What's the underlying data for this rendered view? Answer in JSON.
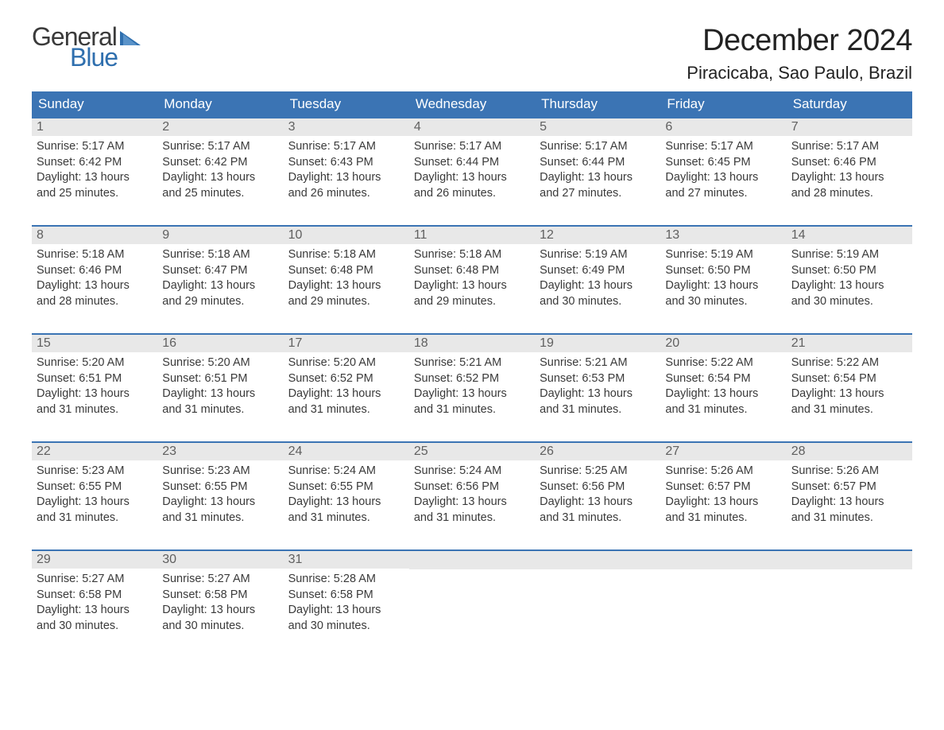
{
  "logo": {
    "text_top": "General",
    "text_bottom": "Blue",
    "color_top": "#3a3a3a",
    "color_bottom": "#2f6fae",
    "icon_color": "#2f6fae"
  },
  "title": "December 2024",
  "location": "Piracicaba, Sao Paulo, Brazil",
  "colors": {
    "header_bg": "#3b74b4",
    "header_text": "#ffffff",
    "daynum_bg": "#e8e8e8",
    "daynum_text": "#606060",
    "body_text": "#3a3a3a",
    "week_border": "#3b74b4",
    "page_bg": "#ffffff"
  },
  "weekdays": [
    "Sunday",
    "Monday",
    "Tuesday",
    "Wednesday",
    "Thursday",
    "Friday",
    "Saturday"
  ],
  "weeks": [
    [
      {
        "num": "1",
        "sunrise": "Sunrise: 5:17 AM",
        "sunset": "Sunset: 6:42 PM",
        "day1": "Daylight: 13 hours",
        "day2": "and 25 minutes."
      },
      {
        "num": "2",
        "sunrise": "Sunrise: 5:17 AM",
        "sunset": "Sunset: 6:42 PM",
        "day1": "Daylight: 13 hours",
        "day2": "and 25 minutes."
      },
      {
        "num": "3",
        "sunrise": "Sunrise: 5:17 AM",
        "sunset": "Sunset: 6:43 PM",
        "day1": "Daylight: 13 hours",
        "day2": "and 26 minutes."
      },
      {
        "num": "4",
        "sunrise": "Sunrise: 5:17 AM",
        "sunset": "Sunset: 6:44 PM",
        "day1": "Daylight: 13 hours",
        "day2": "and 26 minutes."
      },
      {
        "num": "5",
        "sunrise": "Sunrise: 5:17 AM",
        "sunset": "Sunset: 6:44 PM",
        "day1": "Daylight: 13 hours",
        "day2": "and 27 minutes."
      },
      {
        "num": "6",
        "sunrise": "Sunrise: 5:17 AM",
        "sunset": "Sunset: 6:45 PM",
        "day1": "Daylight: 13 hours",
        "day2": "and 27 minutes."
      },
      {
        "num": "7",
        "sunrise": "Sunrise: 5:17 AM",
        "sunset": "Sunset: 6:46 PM",
        "day1": "Daylight: 13 hours",
        "day2": "and 28 minutes."
      }
    ],
    [
      {
        "num": "8",
        "sunrise": "Sunrise: 5:18 AM",
        "sunset": "Sunset: 6:46 PM",
        "day1": "Daylight: 13 hours",
        "day2": "and 28 minutes."
      },
      {
        "num": "9",
        "sunrise": "Sunrise: 5:18 AM",
        "sunset": "Sunset: 6:47 PM",
        "day1": "Daylight: 13 hours",
        "day2": "and 29 minutes."
      },
      {
        "num": "10",
        "sunrise": "Sunrise: 5:18 AM",
        "sunset": "Sunset: 6:48 PM",
        "day1": "Daylight: 13 hours",
        "day2": "and 29 minutes."
      },
      {
        "num": "11",
        "sunrise": "Sunrise: 5:18 AM",
        "sunset": "Sunset: 6:48 PM",
        "day1": "Daylight: 13 hours",
        "day2": "and 29 minutes."
      },
      {
        "num": "12",
        "sunrise": "Sunrise: 5:19 AM",
        "sunset": "Sunset: 6:49 PM",
        "day1": "Daylight: 13 hours",
        "day2": "and 30 minutes."
      },
      {
        "num": "13",
        "sunrise": "Sunrise: 5:19 AM",
        "sunset": "Sunset: 6:50 PM",
        "day1": "Daylight: 13 hours",
        "day2": "and 30 minutes."
      },
      {
        "num": "14",
        "sunrise": "Sunrise: 5:19 AM",
        "sunset": "Sunset: 6:50 PM",
        "day1": "Daylight: 13 hours",
        "day2": "and 30 minutes."
      }
    ],
    [
      {
        "num": "15",
        "sunrise": "Sunrise: 5:20 AM",
        "sunset": "Sunset: 6:51 PM",
        "day1": "Daylight: 13 hours",
        "day2": "and 31 minutes."
      },
      {
        "num": "16",
        "sunrise": "Sunrise: 5:20 AM",
        "sunset": "Sunset: 6:51 PM",
        "day1": "Daylight: 13 hours",
        "day2": "and 31 minutes."
      },
      {
        "num": "17",
        "sunrise": "Sunrise: 5:20 AM",
        "sunset": "Sunset: 6:52 PM",
        "day1": "Daylight: 13 hours",
        "day2": "and 31 minutes."
      },
      {
        "num": "18",
        "sunrise": "Sunrise: 5:21 AM",
        "sunset": "Sunset: 6:52 PM",
        "day1": "Daylight: 13 hours",
        "day2": "and 31 minutes."
      },
      {
        "num": "19",
        "sunrise": "Sunrise: 5:21 AM",
        "sunset": "Sunset: 6:53 PM",
        "day1": "Daylight: 13 hours",
        "day2": "and 31 minutes."
      },
      {
        "num": "20",
        "sunrise": "Sunrise: 5:22 AM",
        "sunset": "Sunset: 6:54 PM",
        "day1": "Daylight: 13 hours",
        "day2": "and 31 minutes."
      },
      {
        "num": "21",
        "sunrise": "Sunrise: 5:22 AM",
        "sunset": "Sunset: 6:54 PM",
        "day1": "Daylight: 13 hours",
        "day2": "and 31 minutes."
      }
    ],
    [
      {
        "num": "22",
        "sunrise": "Sunrise: 5:23 AM",
        "sunset": "Sunset: 6:55 PM",
        "day1": "Daylight: 13 hours",
        "day2": "and 31 minutes."
      },
      {
        "num": "23",
        "sunrise": "Sunrise: 5:23 AM",
        "sunset": "Sunset: 6:55 PM",
        "day1": "Daylight: 13 hours",
        "day2": "and 31 minutes."
      },
      {
        "num": "24",
        "sunrise": "Sunrise: 5:24 AM",
        "sunset": "Sunset: 6:55 PM",
        "day1": "Daylight: 13 hours",
        "day2": "and 31 minutes."
      },
      {
        "num": "25",
        "sunrise": "Sunrise: 5:24 AM",
        "sunset": "Sunset: 6:56 PM",
        "day1": "Daylight: 13 hours",
        "day2": "and 31 minutes."
      },
      {
        "num": "26",
        "sunrise": "Sunrise: 5:25 AM",
        "sunset": "Sunset: 6:56 PM",
        "day1": "Daylight: 13 hours",
        "day2": "and 31 minutes."
      },
      {
        "num": "27",
        "sunrise": "Sunrise: 5:26 AM",
        "sunset": "Sunset: 6:57 PM",
        "day1": "Daylight: 13 hours",
        "day2": "and 31 minutes."
      },
      {
        "num": "28",
        "sunrise": "Sunrise: 5:26 AM",
        "sunset": "Sunset: 6:57 PM",
        "day1": "Daylight: 13 hours",
        "day2": "and 31 minutes."
      }
    ],
    [
      {
        "num": "29",
        "sunrise": "Sunrise: 5:27 AM",
        "sunset": "Sunset: 6:58 PM",
        "day1": "Daylight: 13 hours",
        "day2": "and 30 minutes."
      },
      {
        "num": "30",
        "sunrise": "Sunrise: 5:27 AM",
        "sunset": "Sunset: 6:58 PM",
        "day1": "Daylight: 13 hours",
        "day2": "and 30 minutes."
      },
      {
        "num": "31",
        "sunrise": "Sunrise: 5:28 AM",
        "sunset": "Sunset: 6:58 PM",
        "day1": "Daylight: 13 hours",
        "day2": "and 30 minutes."
      },
      null,
      null,
      null,
      null
    ]
  ]
}
